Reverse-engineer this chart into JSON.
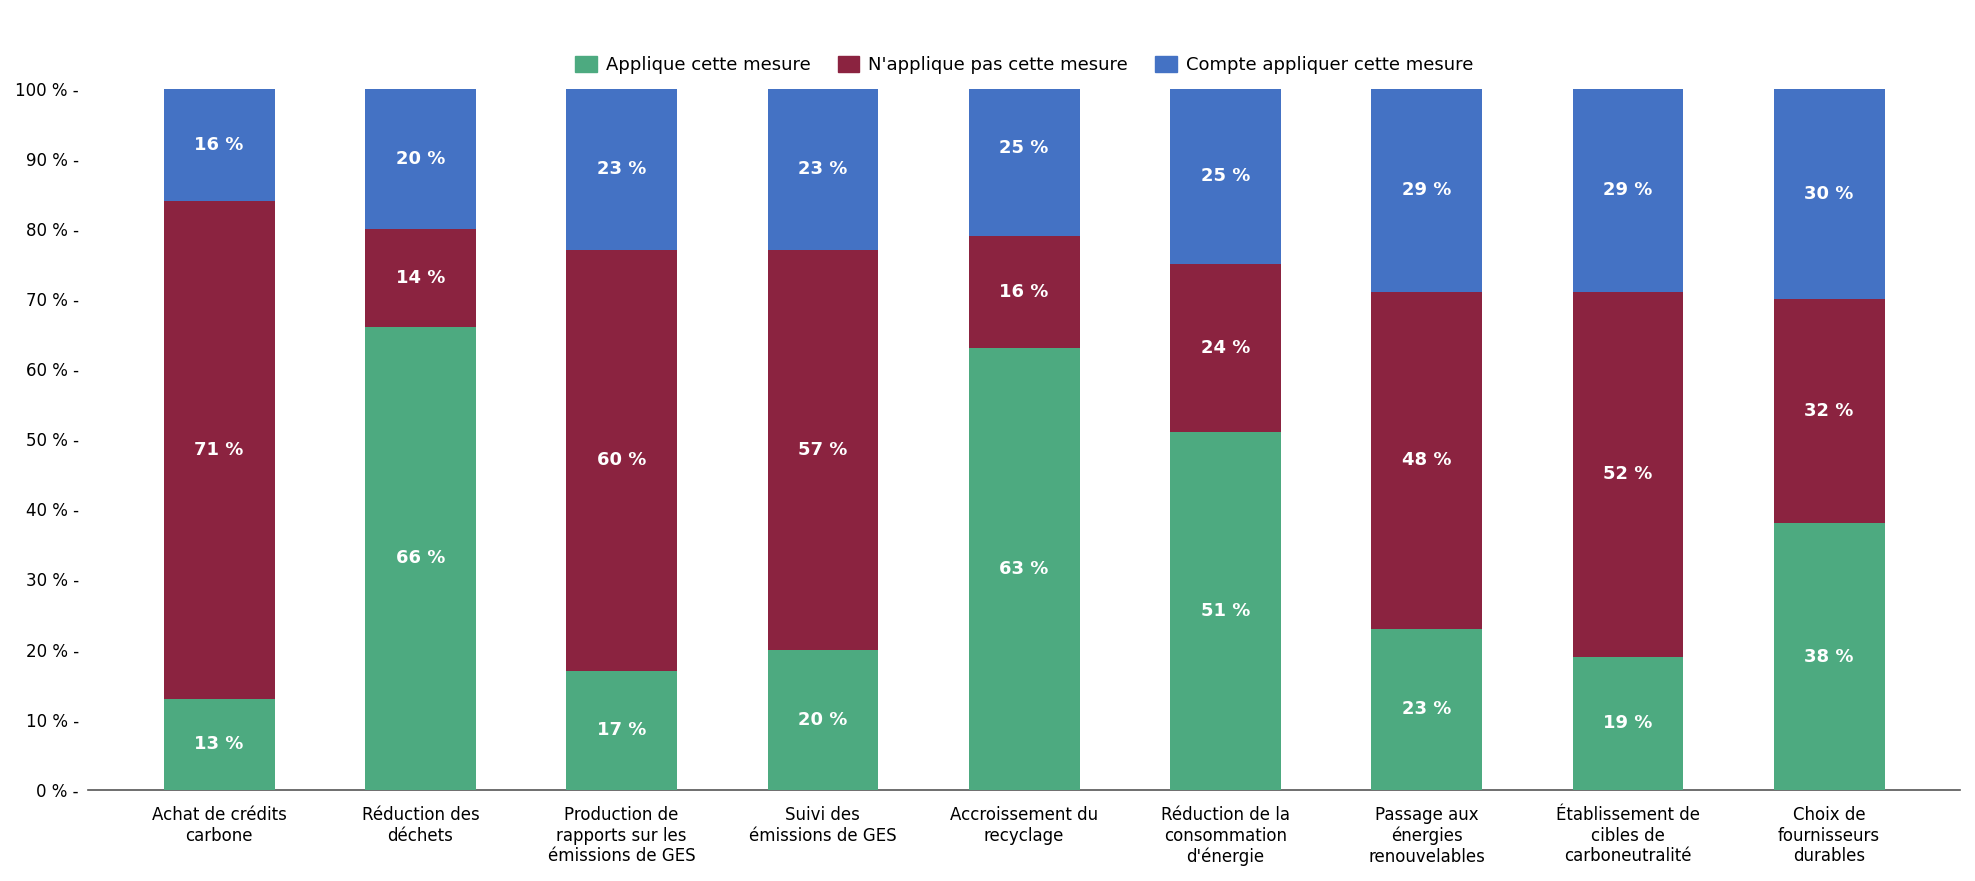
{
  "categories": [
    "Achat de crédits\ncarbone",
    "Réduction des\ndéchets",
    "Production de\nrapports sur les\némissions de GES",
    "Suivi des\némissions de GES",
    "Accroissement du\nrecyclage",
    "Réduction de la\nconsommation\nd'énergie",
    "Passage aux\nénergies\nrenouvelables",
    "Établissement de\ncibles de\ncarboneutralité",
    "Choix de\nfournisseurs\ndurables"
  ],
  "applique": [
    13,
    66,
    17,
    20,
    63,
    51,
    23,
    19,
    38
  ],
  "napplique": [
    71,
    14,
    60,
    57,
    16,
    24,
    48,
    52,
    32
  ],
  "compte": [
    16,
    20,
    23,
    23,
    25,
    25,
    29,
    29,
    30
  ],
  "color_applique": "#4daa80",
  "color_napplique": "#8b2340",
  "color_compte": "#4472c4",
  "legend_labels": [
    "Applique cette mesure",
    "N'applique pas cette mesure",
    "Compte appliquer cette mesure"
  ],
  "yticks": [
    0,
    10,
    20,
    30,
    40,
    50,
    60,
    70,
    80,
    90,
    100
  ],
  "ytick_labels": [
    "0 %",
    "10 %",
    "20 %",
    "30 %",
    "40 %",
    "50 %",
    "60 %",
    "70 %",
    "80 %",
    "90 %",
    "100 %"
  ],
  "background_color": "#ffffff",
  "bar_width": 0.55,
  "fontsize_ticks": 12,
  "fontsize_legend": 13,
  "fontsize_bar_text": 13
}
